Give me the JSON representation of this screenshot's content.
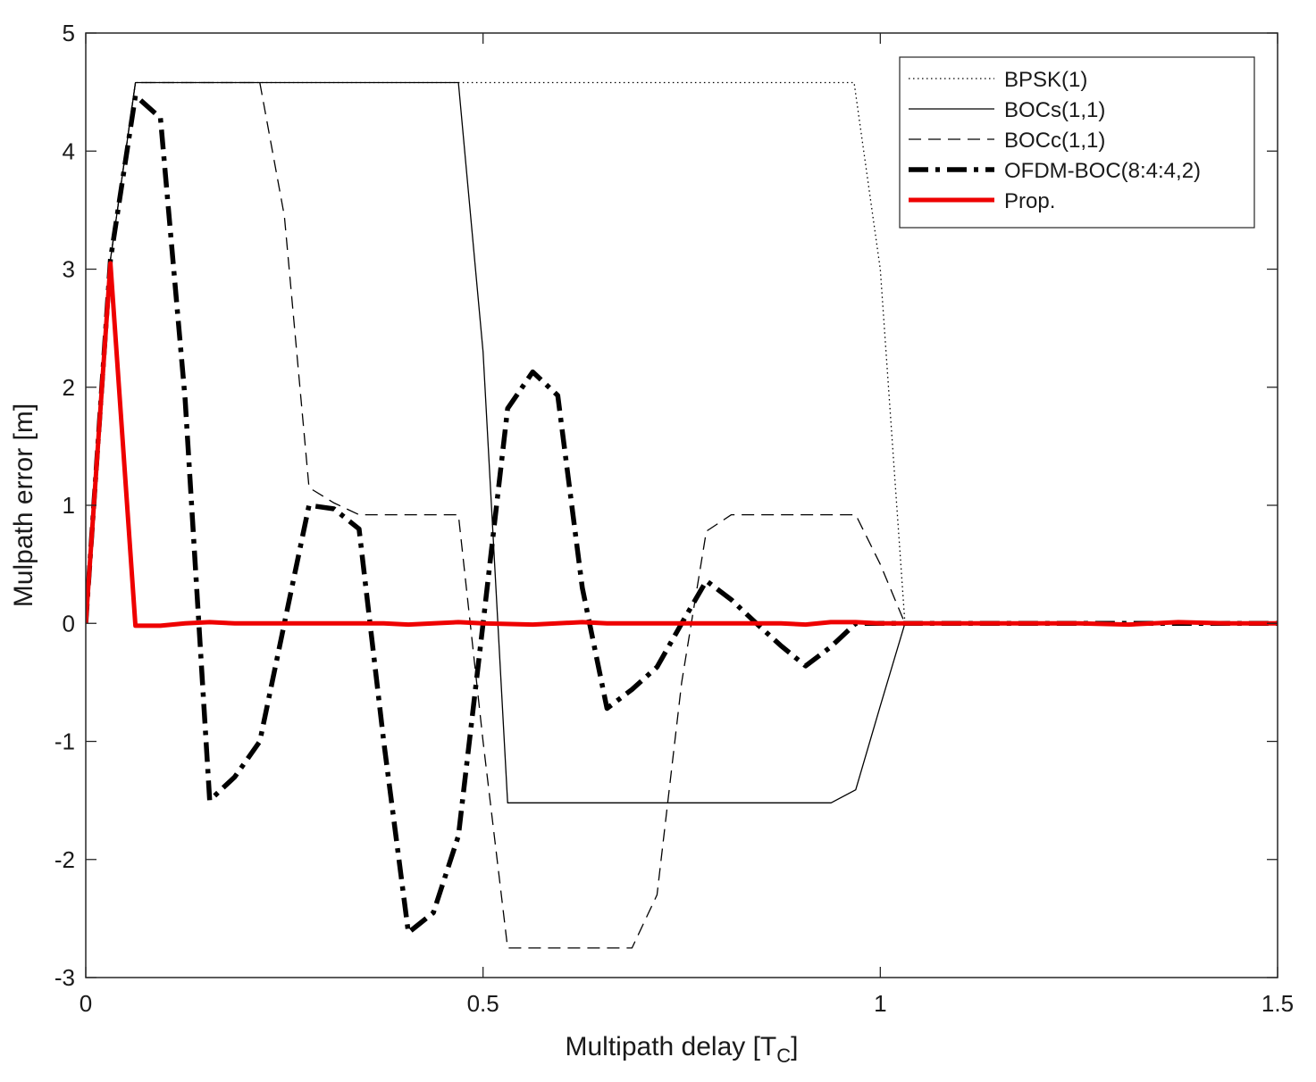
{
  "chart_data": {
    "type": "line",
    "title": "",
    "xlabel": "Multipath delay [T",
    "xlabel_sub": "C",
    "xlabel_end": "]",
    "ylabel": "Mulpath error [m]",
    "xlim": [
      0,
      1.5
    ],
    "ylim": [
      -3,
      5
    ],
    "xticks": [
      0,
      0.5,
      1,
      1.5
    ],
    "xtick_labels": [
      "0",
      "0.5",
      "1",
      "1.5"
    ],
    "yticks": [
      -3,
      -2,
      -1,
      0,
      1,
      2,
      3,
      4,
      5
    ],
    "ytick_labels": [
      "-3",
      "-2",
      "-1",
      "0",
      "1",
      "2",
      "3",
      "4",
      "5"
    ],
    "grid": false,
    "legend_position": "top-right",
    "series": [
      {
        "name": "BPSK(1)",
        "color": "#000000",
        "style": "dotted",
        "x": [
          0,
          0.031,
          0.0625,
          0.967,
          1.0,
          1.031,
          1.05,
          1.5
        ],
        "y": [
          0,
          3.08,
          4.58,
          4.58,
          3.0,
          0.0,
          0.0,
          0.0
        ]
      },
      {
        "name": "BOCs(1,1)",
        "color": "#000000",
        "style": "solid",
        "x": [
          0,
          0.031,
          0.0625,
          0.469,
          0.5,
          0.531,
          0.938,
          0.969,
          1.0,
          1.031,
          1.5
        ],
        "y": [
          0,
          3.08,
          4.58,
          4.58,
          2.3,
          -1.52,
          -1.52,
          -1.41,
          -0.7,
          0.0,
          0.0
        ]
      },
      {
        "name": "BOCc(1,1)",
        "color": "#000000",
        "style": "dashed",
        "x": [
          0,
          0.031,
          0.0625,
          0.219,
          0.25,
          0.281,
          0.3125,
          0.344,
          0.469,
          0.5,
          0.531,
          0.5625,
          0.6875,
          0.719,
          0.75,
          0.781,
          0.8125,
          0.969,
          1.0,
          1.031,
          1.5
        ],
        "y": [
          0,
          3.08,
          4.58,
          4.58,
          3.45,
          1.15,
          1.02,
          0.92,
          0.92,
          -1.0,
          -2.75,
          -2.75,
          -2.75,
          -2.3,
          -0.5,
          0.78,
          0.92,
          0.92,
          0.5,
          0.0,
          0.0
        ]
      },
      {
        "name": "OFDM-BOC(8:4:4,2)",
        "color": "#000000",
        "style": "dashdot",
        "x": [
          0,
          0.031,
          0.0625,
          0.094,
          0.125,
          0.156,
          0.1875,
          0.219,
          0.25,
          0.281,
          0.3125,
          0.344,
          0.375,
          0.406,
          0.4375,
          0.469,
          0.5,
          0.531,
          0.5625,
          0.594,
          0.625,
          0.656,
          0.6875,
          0.719,
          0.75,
          0.781,
          0.8125,
          0.844,
          0.875,
          0.906,
          0.9375,
          0.969,
          1.0,
          1.5
        ],
        "y": [
          0,
          3.08,
          4.47,
          4.28,
          1.9,
          -1.5,
          -1.3,
          -1.0,
          0.0,
          1.0,
          0.97,
          0.8,
          -1.0,
          -2.62,
          -2.45,
          -1.8,
          0.0,
          1.82,
          2.13,
          1.93,
          0.3,
          -0.72,
          -0.56,
          -0.37,
          0.0,
          0.36,
          0.2,
          0.0,
          -0.19,
          -0.36,
          -0.2,
          0.0,
          0.0,
          0.0
        ]
      },
      {
        "name": "Prop.",
        "color": "#ee0000",
        "style": "solid-thick",
        "x": [
          0,
          0.031,
          0.0625,
          0.094,
          0.125,
          0.156,
          0.1875,
          0.25,
          0.3125,
          0.375,
          0.406,
          0.4375,
          0.469,
          0.5,
          0.5625,
          0.625,
          0.656,
          0.6875,
          0.75,
          0.8125,
          0.875,
          0.906,
          0.9375,
          0.969,
          1.0,
          1.0625,
          1.125,
          1.1875,
          1.25,
          1.3125,
          1.375,
          1.4375,
          1.5
        ],
        "y": [
          0,
          3.05,
          -0.02,
          -0.02,
          0.0,
          0.01,
          0.0,
          0.0,
          0.0,
          0.0,
          -0.01,
          0.0,
          0.01,
          0.0,
          -0.01,
          0.01,
          0.0,
          0.0,
          0.0,
          0.0,
          0.0,
          -0.01,
          0.01,
          0.01,
          0.0,
          0.0,
          0.0,
          0.0,
          0.0,
          -0.01,
          0.01,
          0.0,
          0.0
        ]
      }
    ]
  }
}
